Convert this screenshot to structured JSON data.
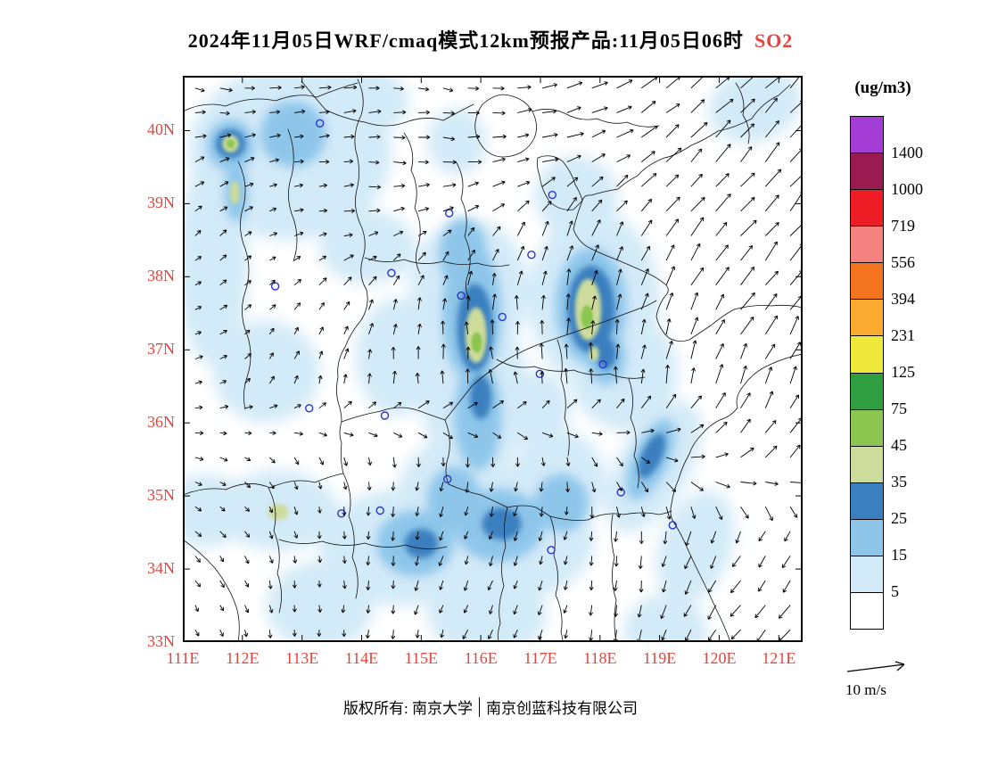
{
  "title": {
    "main": "2024年11月05日WRF/cmaq模式12km预报产品:11月05日06时",
    "pollutant": "SO2"
  },
  "axes": {
    "label_color": "#e2453c",
    "lat_labels": [
      "40N",
      "39N",
      "38N",
      "37N",
      "36N",
      "35N",
      "34N",
      "33N"
    ],
    "lon_labels": [
      "111E",
      "112E",
      "113E",
      "114E",
      "115E",
      "116E",
      "117E",
      "118E",
      "119E",
      "120E",
      "121E"
    ]
  },
  "colorbar": {
    "unit": "(ug/m3)",
    "labels_top_to_bottom": [
      "1400",
      "1000",
      "719",
      "556",
      "394",
      "231",
      "125",
      "75",
      "45",
      "35",
      "25",
      "15",
      "5"
    ],
    "colors_bottom_to_top": [
      "#ffffff",
      "#d3eaf8",
      "#8ec6ea",
      "#3a7fbf",
      "#cedc9b",
      "#8cc651",
      "#2f9e41",
      "#efe93c",
      "#fbab2f",
      "#f4731f",
      "#f5827f",
      "#ee1c25",
      "#991b4f",
      "#a43dd6"
    ]
  },
  "wind_legend": {
    "label": "10 m/s",
    "reference_speed": 10
  },
  "footer": {
    "owner": "版权所有: 南京大学",
    "company": "南京创蓝科技有限公司"
  },
  "chart_data": {
    "type": "filled_contour_map_with_wind_vectors",
    "title": "2024年11月05日WRF/cmaq模式12km预报产品:11月05日06时 SO2",
    "pollutant": "SO2",
    "unit": "ug/m3",
    "model": "WRF/cmaq",
    "resolution": "12km",
    "forecast_date": "2024年11月05日",
    "valid_time": "11月05日06时",
    "lon_range": [
      111,
      121.4
    ],
    "lat_range": [
      33,
      40.75
    ],
    "contour_levels": [
      5,
      15,
      25,
      35,
      45,
      75,
      125,
      231,
      394,
      556,
      719,
      1000,
      1400
    ],
    "so2_blobs_lvl_lon_lat_rx_ry_rot": [
      [
        1,
        112.8,
        39.7,
        1.7,
        1.2,
        0
      ],
      [
        1,
        111.5,
        38.2,
        0.6,
        1.4,
        0
      ],
      [
        1,
        112.4,
        36.7,
        0.9,
        0.7,
        0
      ],
      [
        1,
        113.8,
        40.4,
        1.0,
        0.5,
        0
      ],
      [
        1,
        115.6,
        39.85,
        0.5,
        0.45,
        0
      ],
      [
        1,
        114.1,
        38.4,
        0.8,
        0.5,
        0
      ],
      [
        1,
        115.8,
        37.8,
        1.0,
        1.0,
        0
      ],
      [
        1,
        115.9,
        36.4,
        0.9,
        1.2,
        0
      ],
      [
        1,
        115.6,
        35.0,
        1.0,
        0.8,
        0
      ],
      [
        1,
        114.7,
        34.3,
        1.4,
        0.8,
        0
      ],
      [
        1,
        116.6,
        34.4,
        1.3,
        0.8,
        0
      ],
      [
        1,
        117.9,
        37.7,
        1.1,
        1.2,
        0
      ],
      [
        1,
        118.4,
        36.7,
        0.9,
        0.8,
        0
      ],
      [
        1,
        118.9,
        35.4,
        0.6,
        1.0,
        30
      ],
      [
        1,
        119.6,
        34.3,
        0.6,
        0.8,
        20
      ],
      [
        1,
        117.3,
        35.2,
        0.8,
        0.7,
        0
      ],
      [
        1,
        112.6,
        34.8,
        1.0,
        0.55,
        0
      ],
      [
        1,
        111.4,
        34.8,
        0.7,
        0.5,
        0
      ],
      [
        1,
        117.6,
        39.1,
        0.7,
        0.55,
        0
      ],
      [
        1,
        120.6,
        40.35,
        0.8,
        0.5,
        -20
      ],
      [
        1,
        113.3,
        33.5,
        0.9,
        0.6,
        0
      ],
      [
        1,
        116.1,
        33.4,
        1.0,
        0.6,
        0
      ],
      [
        1,
        119.1,
        33.15,
        0.7,
        0.5,
        0
      ],
      [
        1,
        114.6,
        36.9,
        0.7,
        0.8,
        0
      ],
      [
        1,
        116.9,
        36.2,
        0.6,
        0.5,
        0
      ],
      [
        1,
        111.9,
        39.9,
        0.5,
        0.6,
        0
      ],
      [
        2,
        112.85,
        39.95,
        0.55,
        0.45,
        0
      ],
      [
        2,
        115.85,
        37.5,
        0.5,
        0.95,
        0
      ],
      [
        2,
        115.95,
        36.1,
        0.4,
        0.75,
        0
      ],
      [
        2,
        117.85,
        37.6,
        0.6,
        0.8,
        0
      ],
      [
        2,
        118.1,
        36.9,
        0.33,
        0.38,
        0
      ],
      [
        2,
        116.3,
        34.6,
        0.75,
        0.5,
        0
      ],
      [
        2,
        114.9,
        34.35,
        0.65,
        0.45,
        0
      ],
      [
        2,
        118.85,
        35.5,
        0.3,
        0.6,
        25
      ],
      [
        2,
        111.8,
        39.8,
        0.4,
        0.35,
        0
      ],
      [
        2,
        111.9,
        39.15,
        0.2,
        0.4,
        0
      ],
      [
        2,
        115.55,
        34.95,
        0.45,
        0.45,
        0
      ],
      [
        2,
        117.35,
        34.9,
        0.45,
        0.4,
        0
      ],
      [
        2,
        115.7,
        38.3,
        0.4,
        0.5,
        0
      ],
      [
        3,
        115.9,
        37.3,
        0.3,
        0.6,
        0
      ],
      [
        3,
        117.85,
        37.55,
        0.4,
        0.6,
        0
      ],
      [
        3,
        118.1,
        36.95,
        0.17,
        0.22,
        0
      ],
      [
        3,
        116.35,
        34.62,
        0.33,
        0.22,
        0
      ],
      [
        3,
        111.8,
        39.82,
        0.25,
        0.2,
        0
      ],
      [
        3,
        118.87,
        35.55,
        0.17,
        0.33,
        25
      ],
      [
        3,
        115.0,
        34.35,
        0.28,
        0.2,
        0
      ],
      [
        3,
        116.0,
        36.35,
        0.18,
        0.3,
        0
      ],
      [
        4,
        115.92,
        37.2,
        0.18,
        0.38,
        0
      ],
      [
        4,
        117.8,
        37.55,
        0.22,
        0.42,
        0
      ],
      [
        4,
        111.8,
        39.82,
        0.14,
        0.12,
        0
      ],
      [
        4,
        112.6,
        34.78,
        0.17,
        0.11,
        0
      ],
      [
        4,
        111.87,
        39.15,
        0.08,
        0.16,
        0
      ],
      [
        4,
        117.9,
        36.95,
        0.08,
        0.1,
        0
      ],
      [
        5,
        115.93,
        37.1,
        0.09,
        0.14,
        0
      ],
      [
        5,
        117.78,
        37.45,
        0.1,
        0.16,
        0
      ],
      [
        5,
        111.8,
        39.82,
        0.07,
        0.06,
        0
      ]
    ],
    "city_markers_lon_lat": [
      [
        112.55,
        37.87
      ],
      [
        114.5,
        38.05
      ],
      [
        117.2,
        39.12
      ],
      [
        116.99,
        36.67
      ],
      [
        113.66,
        34.76
      ],
      [
        114.31,
        34.8
      ],
      [
        115.44,
        35.23
      ],
      [
        113.12,
        36.2
      ],
      [
        114.39,
        36.1
      ],
      [
        116.36,
        37.45
      ],
      [
        115.47,
        38.87
      ],
      [
        118.05,
        36.8
      ],
      [
        117.18,
        34.26
      ],
      [
        118.35,
        35.05
      ],
      [
        115.67,
        37.74
      ],
      [
        113.3,
        40.1
      ],
      [
        116.85,
        38.3
      ],
      [
        119.22,
        34.6
      ]
    ],
    "wind_grid": {
      "lons": [
        111.5,
        112.5,
        113.5,
        114.5,
        115.5,
        116.5,
        117.5,
        118.5,
        119.5,
        120.5
      ],
      "lats": [
        40.5,
        39.5,
        38.5,
        37.5,
        36.5,
        35.5,
        34.5,
        33.5
      ],
      "angles_deg_toward": [
        [
          -10,
          0,
          5,
          0,
          -10,
          5,
          15,
          30,
          40,
          45
        ],
        [
          30,
          15,
          5,
          -5,
          0,
          10,
          25,
          35,
          45,
          50
        ],
        [
          40,
          25,
          10,
          20,
          45,
          60,
          70,
          60,
          55,
          50
        ],
        [
          30,
          45,
          60,
          80,
          90,
          90,
          85,
          75,
          65,
          55
        ],
        [
          20,
          60,
          80,
          90,
          95,
          100,
          95,
          90,
          75,
          70
        ],
        [
          -20,
          -50,
          -75,
          -90,
          -100,
          -100,
          -80,
          -45,
          0,
          45
        ],
        [
          -45,
          -70,
          -85,
          -95,
          -105,
          -110,
          -100,
          -90,
          -110,
          -120
        ],
        [
          -60,
          -80,
          -90,
          -100,
          -110,
          -115,
          -105,
          -95,
          -120,
          -130
        ]
      ],
      "speeds_ms": [
        [
          4,
          4,
          4,
          4,
          4,
          5,
          6,
          7,
          8,
          9
        ],
        [
          3,
          3,
          3,
          4,
          4,
          5,
          6,
          7,
          8,
          9
        ],
        [
          2,
          2,
          3,
          3,
          4,
          5,
          6,
          7,
          8,
          9
        ],
        [
          2,
          2,
          3,
          4,
          5,
          6,
          6,
          7,
          8,
          8
        ],
        [
          2,
          2,
          3,
          4,
          5,
          5,
          5,
          6,
          7,
          8
        ],
        [
          2,
          2,
          2,
          3,
          3,
          3,
          3,
          4,
          5,
          6
        ],
        [
          2,
          2,
          2,
          3,
          3,
          3,
          3,
          4,
          5,
          5
        ],
        [
          2,
          2,
          2,
          3,
          3,
          3,
          3,
          4,
          5,
          6
        ]
      ]
    }
  }
}
